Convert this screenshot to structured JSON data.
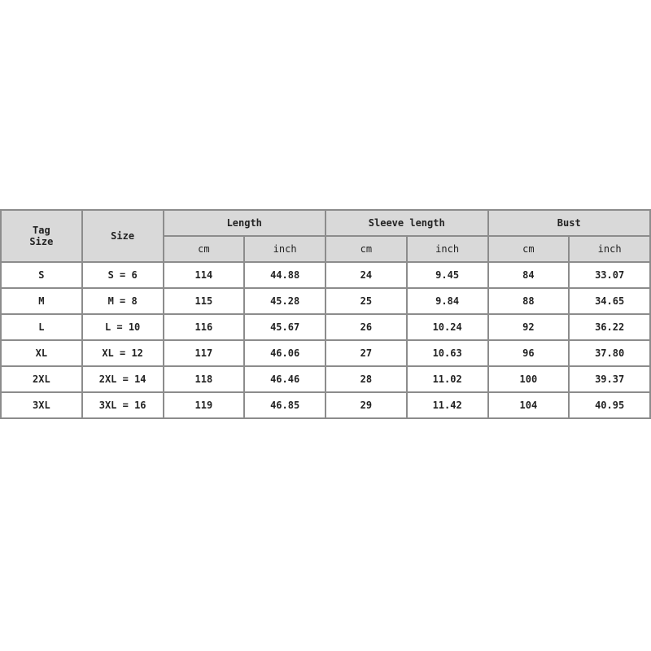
{
  "headers": {
    "tag_size": "Tag Size",
    "size": "Size",
    "groups": [
      "Length",
      "Sleeve length",
      "Bust"
    ],
    "units": [
      "cm",
      "inch",
      "cm",
      "inch",
      "cm",
      "inch"
    ]
  },
  "rows": [
    [
      "S",
      "S = 6",
      "114",
      "44.88",
      "24",
      "9.45",
      "84",
      "33.07"
    ],
    [
      "M",
      "M = 8",
      "115",
      "45.28",
      "25",
      "9.84",
      "88",
      "34.65"
    ],
    [
      "L",
      "L = 10",
      "116",
      "45.67",
      "26",
      "10.24",
      "92",
      "36.22"
    ],
    [
      "XL",
      "XL = 12",
      "117",
      "46.06",
      "27",
      "10.63",
      "96",
      "37.80"
    ],
    [
      "2XL",
      "2XL = 14",
      "118",
      "46.46",
      "28",
      "11.02",
      "100",
      "39.37"
    ],
    [
      "3XL",
      "3XL = 16",
      "119",
      "46.85",
      "29",
      "11.42",
      "104",
      "40.95"
    ]
  ],
  "colors": {
    "header_bg": "#d9d9d9",
    "border": "#8c8c8c"
  }
}
